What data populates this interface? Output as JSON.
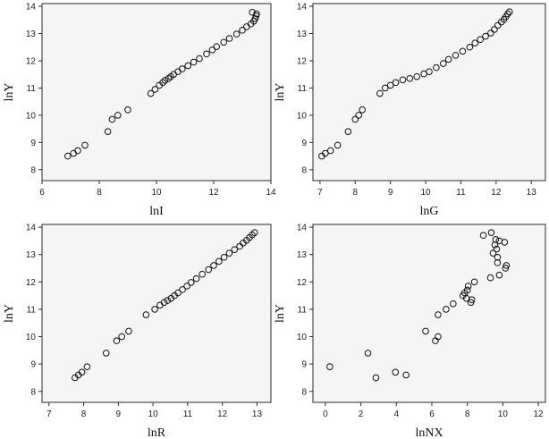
{
  "chart_data": [
    {
      "type": "scatter",
      "xlabel": "lnI",
      "ylabel": "lnY",
      "xlim": [
        6,
        14
      ],
      "ylim": [
        7.6,
        14.1
      ],
      "xticks": [
        6,
        8,
        10,
        12,
        14
      ],
      "yticks": [
        8,
        9,
        10,
        11,
        12,
        13,
        14
      ],
      "grid": false,
      "points": [
        [
          6.9,
          8.5
        ],
        [
          7.1,
          8.6
        ],
        [
          7.25,
          8.7
        ],
        [
          7.5,
          8.9
        ],
        [
          8.3,
          9.4
        ],
        [
          8.45,
          9.85
        ],
        [
          8.65,
          10.0
        ],
        [
          9.0,
          10.2
        ],
        [
          9.8,
          10.8
        ],
        [
          9.95,
          10.95
        ],
        [
          10.1,
          11.1
        ],
        [
          10.22,
          11.2
        ],
        [
          10.3,
          11.28
        ],
        [
          10.42,
          11.35
        ],
        [
          10.5,
          11.42
        ],
        [
          10.6,
          11.5
        ],
        [
          10.75,
          11.6
        ],
        [
          10.9,
          11.7
        ],
        [
          11.1,
          11.82
        ],
        [
          11.3,
          11.95
        ],
        [
          11.5,
          12.08
        ],
        [
          11.75,
          12.25
        ],
        [
          11.95,
          12.4
        ],
        [
          12.1,
          12.52
        ],
        [
          12.35,
          12.68
        ],
        [
          12.55,
          12.82
        ],
        [
          12.8,
          12.98
        ],
        [
          13.0,
          13.12
        ],
        [
          13.15,
          13.25
        ],
        [
          13.3,
          13.35
        ],
        [
          13.4,
          13.45
        ],
        [
          13.45,
          13.55
        ],
        [
          13.48,
          13.65
        ],
        [
          13.35,
          13.78
        ],
        [
          13.5,
          13.72
        ]
      ]
    },
    {
      "type": "scatter",
      "xlabel": "lnG",
      "ylabel": "lnY",
      "xlim": [
        6.8,
        13.4
      ],
      "ylim": [
        7.6,
        14.1
      ],
      "xticks": [
        7,
        8,
        9,
        10,
        11,
        12,
        13
      ],
      "yticks": [
        8,
        9,
        10,
        11,
        12,
        13,
        14
      ],
      "grid": false,
      "points": [
        [
          7.05,
          8.5
        ],
        [
          7.15,
          8.6
        ],
        [
          7.3,
          8.7
        ],
        [
          7.5,
          8.9
        ],
        [
          7.8,
          9.4
        ],
        [
          8.0,
          9.85
        ],
        [
          8.1,
          10.0
        ],
        [
          8.2,
          10.2
        ],
        [
          8.7,
          10.8
        ],
        [
          8.85,
          11.0
        ],
        [
          9.0,
          11.1
        ],
        [
          9.15,
          11.2
        ],
        [
          9.35,
          11.3
        ],
        [
          9.55,
          11.35
        ],
        [
          9.75,
          11.42
        ],
        [
          9.95,
          11.52
        ],
        [
          10.1,
          11.6
        ],
        [
          10.3,
          11.75
        ],
        [
          10.5,
          11.9
        ],
        [
          10.65,
          12.05
        ],
        [
          10.85,
          12.2
        ],
        [
          11.05,
          12.35
        ],
        [
          11.25,
          12.5
        ],
        [
          11.4,
          12.65
        ],
        [
          11.55,
          12.78
        ],
        [
          11.7,
          12.9
        ],
        [
          11.85,
          13.02
        ],
        [
          11.95,
          13.15
        ],
        [
          12.05,
          13.3
        ],
        [
          12.15,
          13.42
        ],
        [
          12.22,
          13.52
        ],
        [
          12.28,
          13.62
        ],
        [
          12.33,
          13.72
        ],
        [
          12.38,
          13.8
        ]
      ]
    },
    {
      "type": "scatter",
      "xlabel": "lnR",
      "ylabel": "lnY",
      "xlim": [
        6.8,
        13.4
      ],
      "ylim": [
        7.6,
        14.1
      ],
      "xticks": [
        7,
        8,
        9,
        10,
        11,
        12,
        13
      ],
      "yticks": [
        8,
        9,
        10,
        11,
        12,
        13,
        14
      ],
      "grid": false,
      "points": [
        [
          7.75,
          8.5
        ],
        [
          7.85,
          8.6
        ],
        [
          7.95,
          8.7
        ],
        [
          8.1,
          8.9
        ],
        [
          8.65,
          9.4
        ],
        [
          8.95,
          9.85
        ],
        [
          9.1,
          10.0
        ],
        [
          9.3,
          10.2
        ],
        [
          9.8,
          10.8
        ],
        [
          10.05,
          11.0
        ],
        [
          10.2,
          11.15
        ],
        [
          10.32,
          11.25
        ],
        [
          10.42,
          11.32
        ],
        [
          10.52,
          11.4
        ],
        [
          10.62,
          11.5
        ],
        [
          10.72,
          11.6
        ],
        [
          10.85,
          11.72
        ],
        [
          10.98,
          11.85
        ],
        [
          11.1,
          11.98
        ],
        [
          11.25,
          12.12
        ],
        [
          11.42,
          12.28
        ],
        [
          11.6,
          12.45
        ],
        [
          11.75,
          12.6
        ],
        [
          11.9,
          12.75
        ],
        [
          12.05,
          12.9
        ],
        [
          12.2,
          13.05
        ],
        [
          12.35,
          13.18
        ],
        [
          12.5,
          13.3
        ],
        [
          12.6,
          13.42
        ],
        [
          12.7,
          13.52
        ],
        [
          12.78,
          13.62
        ],
        [
          12.86,
          13.72
        ],
        [
          12.93,
          13.8
        ]
      ]
    },
    {
      "type": "scatter",
      "xlabel": "lnNX",
      "ylabel": "lnY",
      "xlim": [
        -0.7,
        12.4
      ],
      "ylim": [
        7.6,
        14.1
      ],
      "xticks": [
        0,
        2,
        4,
        6,
        8,
        10,
        12
      ],
      "yticks": [
        8,
        9,
        10,
        11,
        12,
        13,
        14
      ],
      "grid": false,
      "points": [
        [
          0.25,
          8.9
        ],
        [
          2.4,
          9.4
        ],
        [
          2.85,
          8.5
        ],
        [
          3.95,
          8.7
        ],
        [
          4.55,
          8.6
        ],
        [
          5.65,
          10.2
        ],
        [
          6.2,
          9.85
        ],
        [
          6.35,
          10.0
        ],
        [
          6.35,
          10.8
        ],
        [
          6.8,
          11.0
        ],
        [
          7.2,
          11.2
        ],
        [
          7.75,
          11.5
        ],
        [
          7.85,
          11.6
        ],
        [
          7.95,
          11.4
        ],
        [
          8.0,
          11.7
        ],
        [
          8.05,
          11.85
        ],
        [
          8.2,
          11.25
        ],
        [
          8.25,
          11.35
        ],
        [
          8.4,
          12.0
        ],
        [
          8.9,
          13.7
        ],
        [
          9.3,
          12.15
        ],
        [
          9.35,
          13.8
        ],
        [
          9.45,
          13.05
        ],
        [
          9.55,
          13.35
        ],
        [
          9.6,
          13.55
        ],
        [
          9.65,
          13.2
        ],
        [
          9.7,
          12.9
        ],
        [
          9.7,
          12.7
        ],
        [
          9.8,
          13.5
        ],
        [
          9.8,
          12.25
        ],
        [
          10.1,
          13.45
        ],
        [
          10.15,
          12.5
        ],
        [
          10.2,
          12.6
        ]
      ]
    }
  ]
}
